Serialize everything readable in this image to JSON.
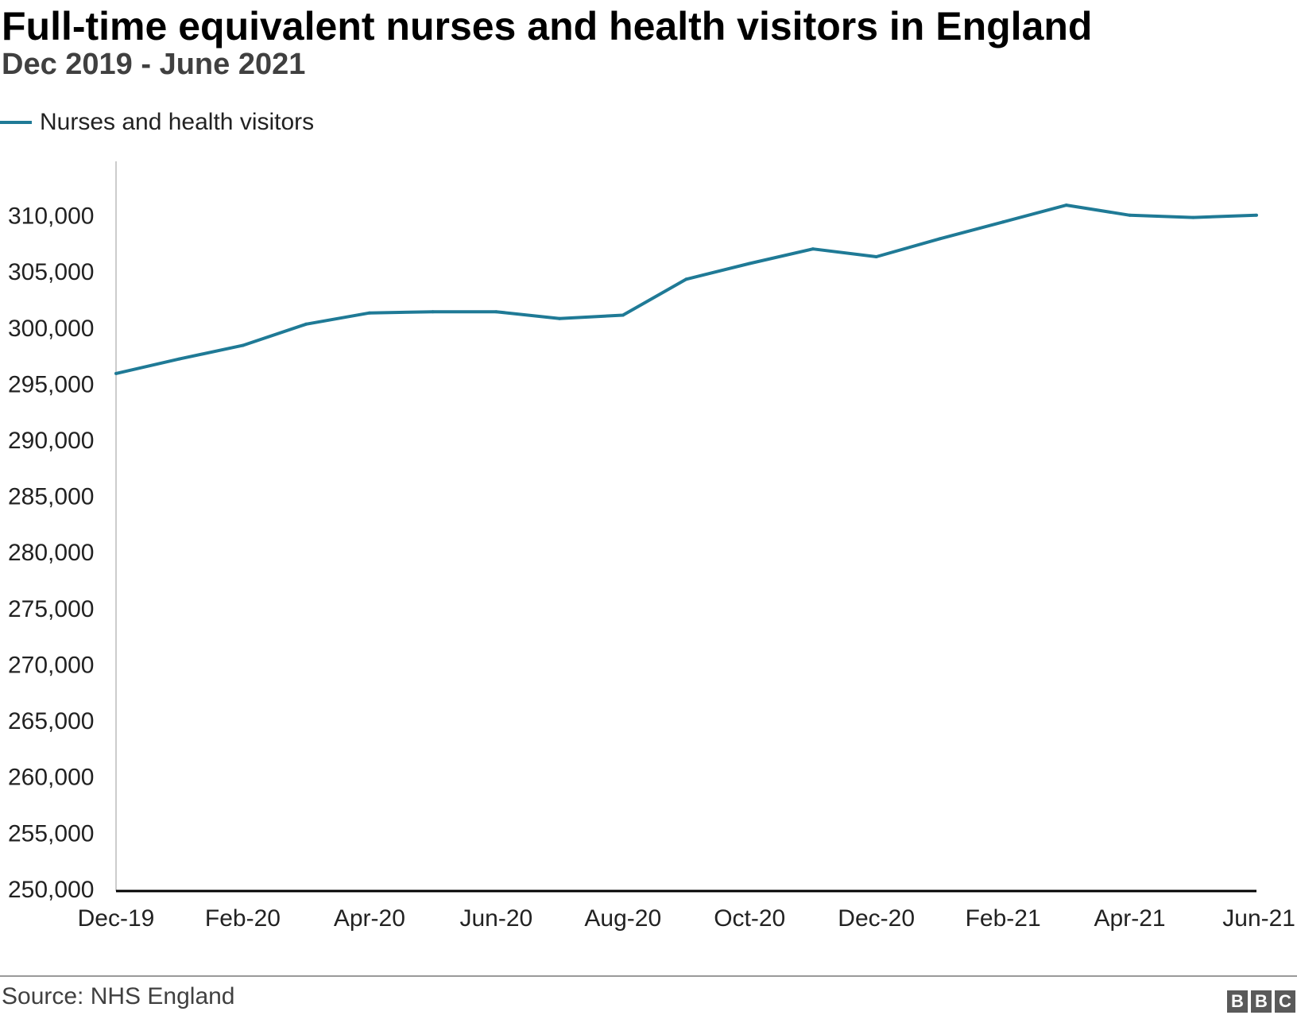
{
  "chart_data": {
    "type": "line",
    "title": "Full-time equivalent nurses and health visitors in England",
    "subtitle": "Dec 2019 - June 2021",
    "source": "Source: NHS England",
    "x": [
      "Dec-19",
      "Jan-20",
      "Feb-20",
      "Mar-20",
      "Apr-20",
      "May-20",
      "Jun-20",
      "Jul-20",
      "Aug-20",
      "Sep-20",
      "Oct-20",
      "Nov-20",
      "Dec-20",
      "Jan-21",
      "Feb-21",
      "Mar-21",
      "Apr-21",
      "May-21",
      "Jun-21"
    ],
    "x_tick_labels": [
      "Dec-19",
      "Feb-20",
      "Apr-20",
      "Jun-20",
      "Aug-20",
      "Oct-20",
      "Dec-20",
      "Feb-21",
      "Apr-21",
      "Jun-21"
    ],
    "series": [
      {
        "name": "Nurses and health visitors",
        "color": "#1f7a96",
        "values": [
          296100,
          297400,
          298600,
          300500,
          301500,
          301600,
          301600,
          301000,
          301300,
          304500,
          305900,
          307200,
          306500,
          308100,
          309600,
          311100,
          310200,
          310000,
          310200
        ]
      }
    ],
    "ylim": [
      250000,
      315000
    ],
    "y_ticks": [
      250000,
      255000,
      260000,
      265000,
      270000,
      275000,
      280000,
      285000,
      290000,
      295000,
      300000,
      305000,
      310000
    ],
    "xlabel": "",
    "ylabel": "",
    "grid": false,
    "legend_position": "top-left"
  },
  "branding": {
    "logo_letters": [
      "B",
      "B",
      "C"
    ]
  }
}
